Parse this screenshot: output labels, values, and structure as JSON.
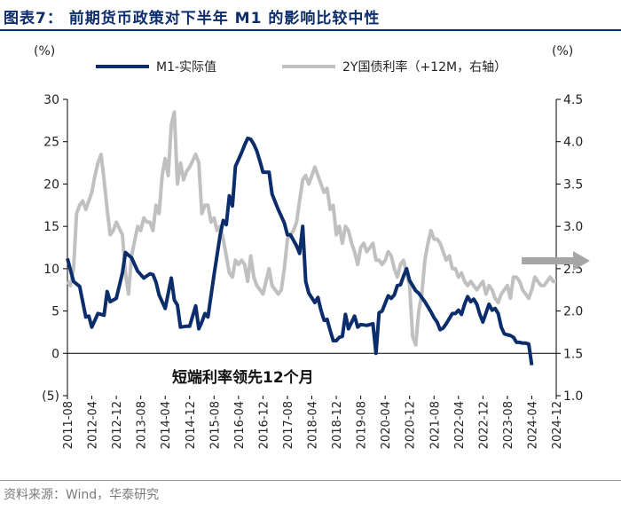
{
  "header": {
    "title": "图表7：  前期货币政策对下半年 M1 的影响比较中性",
    "source": "资料来源：Wind，华泰研究"
  },
  "colors": {
    "m1": "#0c2d6b",
    "bond": "#c0c0c0",
    "arrow": "#a6a6a6",
    "title": "#0c2d6b"
  },
  "chart_data": {
    "type": "line",
    "title": "前期货币政策对下半年 M1 的影响比较中性",
    "left_axis": {
      "unit_label": "(%)",
      "ylim": [
        -5,
        30
      ],
      "ticks": [
        -5,
        0,
        5,
        10,
        15,
        20,
        25,
        30
      ],
      "tick_labels": [
        "(5)",
        "0",
        "5",
        "10",
        "15",
        "20",
        "25",
        "30"
      ]
    },
    "right_axis": {
      "unit_label": "(%)",
      "ylim": [
        1.0,
        4.5
      ],
      "ticks": [
        1.0,
        1.5,
        2.0,
        2.5,
        3.0,
        3.5,
        4.0,
        4.5
      ],
      "tick_labels": [
        "1.0",
        "1.5",
        "2.0",
        "2.5",
        "3.0",
        "3.5",
        "4.0",
        "4.5"
      ]
    },
    "x_tick_labels": [
      "2011-08",
      "2012-04",
      "2012-12",
      "2013-08",
      "2014-04",
      "2014-12",
      "2015-08",
      "2016-04",
      "2016-12",
      "2017-08",
      "2018-04",
      "2018-12",
      "2019-08",
      "2020-04",
      "2020-12",
      "2021-08",
      "2022-04",
      "2022-12",
      "2023-08",
      "2024-04",
      "2024-12"
    ],
    "annotation": "短端利率领先12个月",
    "series": [
      {
        "name": "M1-实际值",
        "axis": "left",
        "points": [
          [
            "2011-08",
            11.2
          ],
          [
            "2011-10",
            8.5
          ],
          [
            "2011-12",
            7.9
          ],
          [
            "2012-02",
            4.3
          ],
          [
            "2012-03",
            4.4
          ],
          [
            "2012-04",
            3.1
          ],
          [
            "2012-06",
            4.7
          ],
          [
            "2012-08",
            4.5
          ],
          [
            "2012-09",
            7.3
          ],
          [
            "2012-10",
            6.1
          ],
          [
            "2012-12",
            6.5
          ],
          [
            "2013-02",
            9.5
          ],
          [
            "2013-03",
            11.9
          ],
          [
            "2013-05",
            11.3
          ],
          [
            "2013-07",
            9.7
          ],
          [
            "2013-09",
            8.9
          ],
          [
            "2013-11",
            9.4
          ],
          [
            "2013-12",
            9.3
          ],
          [
            "2014-01",
            8.4
          ],
          [
            "2014-02",
            6.9
          ],
          [
            "2014-04",
            5.3
          ],
          [
            "2014-06",
            8.9
          ],
          [
            "2014-07",
            6.3
          ],
          [
            "2014-08",
            5.7
          ],
          [
            "2014-09",
            3.1
          ],
          [
            "2014-11",
            3.2
          ],
          [
            "2014-12",
            3.2
          ],
          [
            "2015-02",
            5.6
          ],
          [
            "2015-03",
            2.9
          ],
          [
            "2015-04",
            3.7
          ],
          [
            "2015-05",
            4.7
          ],
          [
            "2015-06",
            4.3
          ],
          [
            "2015-08",
            9.3
          ],
          [
            "2015-10",
            14.0
          ],
          [
            "2015-11",
            15.7
          ],
          [
            "2015-12",
            15.2
          ],
          [
            "2016-01",
            18.6
          ],
          [
            "2016-02",
            17.4
          ],
          [
            "2016-03",
            22.1
          ],
          [
            "2016-04",
            22.9
          ],
          [
            "2016-05",
            23.7
          ],
          [
            "2016-06",
            24.6
          ],
          [
            "2016-07",
            25.4
          ],
          [
            "2016-08",
            25.3
          ],
          [
            "2016-09",
            24.7
          ],
          [
            "2016-10",
            23.9
          ],
          [
            "2016-11",
            22.7
          ],
          [
            "2016-12",
            21.4
          ],
          [
            "2017-02",
            21.4
          ],
          [
            "2017-03",
            18.8
          ],
          [
            "2017-05",
            17.0
          ],
          [
            "2017-07",
            15.4
          ],
          [
            "2017-08",
            14.0
          ],
          [
            "2017-09",
            14.0
          ],
          [
            "2017-11",
            12.7
          ],
          [
            "2017-12",
            11.8
          ],
          [
            "2018-01",
            15.0
          ],
          [
            "2018-02",
            8.5
          ],
          [
            "2018-03",
            7.1
          ],
          [
            "2018-05",
            6.0
          ],
          [
            "2018-06",
            6.6
          ],
          [
            "2018-07",
            5.1
          ],
          [
            "2018-08",
            3.9
          ],
          [
            "2018-09",
            4.0
          ],
          [
            "2018-10",
            2.7
          ],
          [
            "2018-11",
            1.5
          ],
          [
            "2018-12",
            1.5
          ],
          [
            "2019-01",
            1.9
          ],
          [
            "2019-02",
            2.0
          ],
          [
            "2019-03",
            4.6
          ],
          [
            "2019-04",
            2.9
          ],
          [
            "2019-06",
            4.4
          ],
          [
            "2019-07",
            3.1
          ],
          [
            "2019-08",
            3.4
          ],
          [
            "2019-10",
            3.3
          ],
          [
            "2019-12",
            3.5
          ],
          [
            "2020-01",
            0.0
          ],
          [
            "2020-02",
            4.8
          ],
          [
            "2020-03",
            5.0
          ],
          [
            "2020-05",
            6.8
          ],
          [
            "2020-06",
            6.5
          ],
          [
            "2020-07",
            6.9
          ],
          [
            "2020-08",
            8.0
          ],
          [
            "2020-09",
            8.1
          ],
          [
            "2020-10",
            9.1
          ],
          [
            "2020-11",
            10.0
          ],
          [
            "2020-12",
            8.6
          ],
          [
            "2021-02",
            7.4
          ],
          [
            "2021-03",
            7.1
          ],
          [
            "2021-05",
            6.1
          ],
          [
            "2021-06",
            5.5
          ],
          [
            "2021-07",
            4.9
          ],
          [
            "2021-08",
            4.2
          ],
          [
            "2021-09",
            3.7
          ],
          [
            "2021-10",
            2.8
          ],
          [
            "2021-11",
            3.0
          ],
          [
            "2021-12",
            3.5
          ],
          [
            "2022-02",
            4.7
          ],
          [
            "2022-03",
            4.7
          ],
          [
            "2022-04",
            5.1
          ],
          [
            "2022-05",
            4.6
          ],
          [
            "2022-06",
            5.8
          ],
          [
            "2022-07",
            6.7
          ],
          [
            "2022-08",
            6.1
          ],
          [
            "2022-09",
            6.4
          ],
          [
            "2022-10",
            5.8
          ],
          [
            "2022-11",
            4.6
          ],
          [
            "2022-12",
            3.7
          ],
          [
            "2023-02",
            5.8
          ],
          [
            "2023-03",
            5.1
          ],
          [
            "2023-04",
            5.3
          ],
          [
            "2023-05",
            4.7
          ],
          [
            "2023-06",
            3.1
          ],
          [
            "2023-07",
            2.3
          ],
          [
            "2023-08",
            2.2
          ],
          [
            "2023-09",
            2.1
          ],
          [
            "2023-10",
            1.9
          ],
          [
            "2023-11",
            1.3
          ],
          [
            "2023-12",
            1.3
          ],
          [
            "2024-01",
            1.2
          ],
          [
            "2024-02",
            1.2
          ],
          [
            "2024-03",
            1.1
          ],
          [
            "2024-04",
            -1.4
          ]
        ]
      },
      {
        "name": "2Y国债利率（+12M，右轴）",
        "axis": "right",
        "points": [
          [
            "2011-08",
            2.35
          ],
          [
            "2011-09",
            2.3
          ],
          [
            "2011-10",
            2.5
          ],
          [
            "2011-11",
            3.15
          ],
          [
            "2011-12",
            3.25
          ],
          [
            "2012-01",
            3.3
          ],
          [
            "2012-02",
            3.2
          ],
          [
            "2012-04",
            3.4
          ],
          [
            "2012-05",
            3.6
          ],
          [
            "2012-06",
            3.75
          ],
          [
            "2012-07",
            3.85
          ],
          [
            "2012-08",
            3.55
          ],
          [
            "2012-09",
            3.2
          ],
          [
            "2012-10",
            2.9
          ],
          [
            "2012-11",
            2.95
          ],
          [
            "2012-12",
            3.05
          ],
          [
            "2013-02",
            2.9
          ],
          [
            "2013-03",
            2.45
          ],
          [
            "2013-04",
            2.2
          ],
          [
            "2013-05",
            2.65
          ],
          [
            "2013-07",
            3.0
          ],
          [
            "2013-08",
            2.95
          ],
          [
            "2013-09",
            3.1
          ],
          [
            "2013-10",
            3.05
          ],
          [
            "2013-11",
            3.05
          ],
          [
            "2013-12",
            2.95
          ],
          [
            "2014-01",
            3.25
          ],
          [
            "2014-02",
            3.15
          ],
          [
            "2014-03",
            3.6
          ],
          [
            "2014-04",
            3.8
          ],
          [
            "2014-05",
            3.6
          ],
          [
            "2014-06",
            4.2
          ],
          [
            "2014-07",
            4.35
          ],
          [
            "2014-08",
            3.5
          ],
          [
            "2014-09",
            3.75
          ],
          [
            "2014-10",
            3.55
          ],
          [
            "2014-11",
            3.65
          ],
          [
            "2014-12",
            3.7
          ],
          [
            "2015-02",
            3.85
          ],
          [
            "2015-03",
            3.75
          ],
          [
            "2015-04",
            3.15
          ],
          [
            "2015-05",
            3.25
          ],
          [
            "2015-06",
            3.25
          ],
          [
            "2015-07",
            3.05
          ],
          [
            "2015-08",
            3.1
          ],
          [
            "2015-09",
            2.95
          ],
          [
            "2015-10",
            3.0
          ],
          [
            "2015-11",
            2.85
          ],
          [
            "2015-12",
            2.65
          ],
          [
            "2016-01",
            2.45
          ],
          [
            "2016-02",
            2.4
          ],
          [
            "2016-03",
            2.6
          ],
          [
            "2016-04",
            2.55
          ],
          [
            "2016-05",
            2.6
          ],
          [
            "2016-06",
            2.55
          ],
          [
            "2016-07",
            2.35
          ],
          [
            "2016-08",
            2.65
          ],
          [
            "2016-09",
            2.4
          ],
          [
            "2016-10",
            2.3
          ],
          [
            "2016-11",
            2.25
          ],
          [
            "2016-12",
            2.2
          ],
          [
            "2017-02",
            2.5
          ],
          [
            "2017-03",
            2.3
          ],
          [
            "2017-04",
            2.25
          ],
          [
            "2017-05",
            2.2
          ],
          [
            "2017-06",
            2.25
          ],
          [
            "2017-07",
            2.5
          ],
          [
            "2017-08",
            2.85
          ],
          [
            "2017-09",
            2.9
          ],
          [
            "2017-10",
            2.95
          ],
          [
            "2017-11",
            3.05
          ],
          [
            "2017-12",
            3.3
          ],
          [
            "2018-01",
            3.55
          ],
          [
            "2018-02",
            3.6
          ],
          [
            "2018-03",
            3.5
          ],
          [
            "2018-04",
            3.6
          ],
          [
            "2018-05",
            3.7
          ],
          [
            "2018-06",
            3.6
          ],
          [
            "2018-07",
            3.5
          ],
          [
            "2018-08",
            3.4
          ],
          [
            "2018-09",
            3.45
          ],
          [
            "2018-10",
            3.2
          ],
          [
            "2018-11",
            3.25
          ],
          [
            "2018-12",
            2.9
          ],
          [
            "2019-01",
            3.0
          ],
          [
            "2019-02",
            2.8
          ],
          [
            "2019-03",
            3.0
          ],
          [
            "2019-04",
            2.95
          ],
          [
            "2019-05",
            2.8
          ],
          [
            "2019-06",
            2.7
          ],
          [
            "2019-07",
            2.55
          ],
          [
            "2019-08",
            2.75
          ],
          [
            "2019-09",
            2.8
          ],
          [
            "2019-10",
            2.7
          ],
          [
            "2019-11",
            2.75
          ],
          [
            "2019-12",
            2.8
          ],
          [
            "2020-01",
            2.6
          ],
          [
            "2020-02",
            2.6
          ],
          [
            "2020-03",
            2.55
          ],
          [
            "2020-04",
            2.6
          ],
          [
            "2020-05",
            2.7
          ],
          [
            "2020-06",
            2.65
          ],
          [
            "2020-07",
            2.5
          ],
          [
            "2020-08",
            2.4
          ],
          [
            "2020-09",
            2.55
          ],
          [
            "2020-10",
            2.6
          ],
          [
            "2020-11",
            2.45
          ],
          [
            "2020-12",
            2.3
          ],
          [
            "2021-01",
            1.7
          ],
          [
            "2021-02",
            1.6
          ],
          [
            "2021-03",
            2.0
          ],
          [
            "2021-04",
            2.2
          ],
          [
            "2021-05",
            2.6
          ],
          [
            "2021-06",
            2.8
          ],
          [
            "2021-07",
            2.95
          ],
          [
            "2021-08",
            2.85
          ],
          [
            "2021-09",
            2.85
          ],
          [
            "2021-10",
            2.8
          ],
          [
            "2021-11",
            2.7
          ],
          [
            "2021-12",
            2.6
          ],
          [
            "2022-01",
            2.65
          ],
          [
            "2022-02",
            2.5
          ],
          [
            "2022-03",
            2.5
          ],
          [
            "2022-04",
            2.4
          ],
          [
            "2022-05",
            2.45
          ],
          [
            "2022-06",
            2.35
          ],
          [
            "2022-07",
            2.3
          ],
          [
            "2022-08",
            2.35
          ],
          [
            "2022-09",
            2.3
          ],
          [
            "2022-10",
            2.25
          ],
          [
            "2022-11",
            2.3
          ],
          [
            "2022-12",
            2.35
          ],
          [
            "2023-01",
            2.2
          ],
          [
            "2023-02",
            2.3
          ],
          [
            "2023-03",
            2.25
          ],
          [
            "2023-04",
            2.15
          ],
          [
            "2023-05",
            2.1
          ],
          [
            "2023-06",
            2.2
          ],
          [
            "2023-07",
            2.25
          ],
          [
            "2023-08",
            2.3
          ],
          [
            "2023-09",
            2.15
          ],
          [
            "2023-10",
            2.4
          ],
          [
            "2023-11",
            2.4
          ],
          [
            "2023-12",
            2.35
          ],
          [
            "2024-01",
            2.25
          ],
          [
            "2024-02",
            2.2
          ],
          [
            "2024-03",
            2.15
          ],
          [
            "2024-04",
            2.25
          ],
          [
            "2024-05",
            2.4
          ],
          [
            "2024-06",
            2.35
          ],
          [
            "2024-07",
            2.3
          ],
          [
            "2024-08",
            2.3
          ],
          [
            "2024-09",
            2.35
          ],
          [
            "2024-10",
            2.4
          ],
          [
            "2024-11",
            2.35
          ],
          [
            "2024-12",
            2.35
          ]
        ]
      }
    ]
  }
}
